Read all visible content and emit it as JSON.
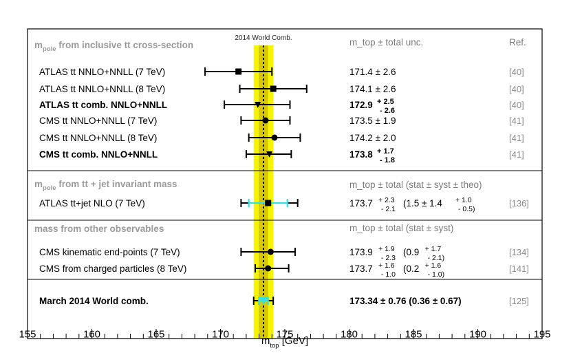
{
  "chart_data": {
    "type": "scatter",
    "xlabel": "m_top [GeV]",
    "xlabel_main": "m",
    "xlabel_sub": "top",
    "xlabel_unit": " [GeV]",
    "xlim": [
      155,
      195
    ],
    "x_ticks": [
      155,
      160,
      165,
      170,
      175,
      180,
      185,
      190,
      195
    ],
    "band": {
      "label": "2014 World Comb.",
      "center": 173.34,
      "total_unc": 0.76,
      "stat_unc": 0.36,
      "outer_color": "#f5f500",
      "inner_color": "#d8c800"
    },
    "headers": {
      "value": "m_top ± total unc.",
      "ref": "Ref."
    },
    "sections": [
      {
        "title_main": "m",
        "title_sub": "pole",
        "title_rest": " from inclusive tt cross-section",
        "value_header": "m_top ± total unc."
      },
      {
        "title_main": "m",
        "title_sub": "pole",
        "title_rest": " from tt + jet invariant mass",
        "value_header": "m_top ± total (stat ± syst ± theo)"
      },
      {
        "title_main": "",
        "title_sub": "",
        "title_rest": "mass from other observables",
        "value_header": "m_top ± total (stat ± syst)"
      }
    ],
    "measurements": [
      {
        "label": "ATLAS tt NNLO+NNLL (7 TeV)",
        "x": 171.4,
        "err_lo": 2.6,
        "err_hi": 2.6,
        "marker": "square",
        "bold": false,
        "value_text": "171.4 ± 2.6",
        "ref": "[40]"
      },
      {
        "label": "ATLAS tt NNLO+NNLL (8 TeV)",
        "x": 174.1,
        "err_lo": 2.6,
        "err_hi": 2.6,
        "marker": "square",
        "bold": false,
        "value_text": "174.1 ± 2.6",
        "ref": "[40]"
      },
      {
        "label": "ATLAS tt comb. NNLO+NNLL",
        "x": 172.9,
        "err_lo": 2.6,
        "err_hi": 2.5,
        "marker": "triangle",
        "bold": true,
        "value_text": "172.9",
        "err_up_text": "+ 2.5",
        "err_dn_text": "- 2.6",
        "ref": "[40]"
      },
      {
        "label": "CMS tt NNLO+NNLL (7 TeV)",
        "x": 173.5,
        "err_lo": 1.9,
        "err_hi": 1.9,
        "marker": "circle",
        "bold": false,
        "value_text": "173.5 ± 1.9",
        "ref": "[41]"
      },
      {
        "label": "CMS tt NNLO+NNLL (8 TeV)",
        "x": 174.2,
        "err_lo": 2.0,
        "err_hi": 2.0,
        "marker": "circle",
        "bold": false,
        "value_text": "174.2 ± 2.0",
        "ref": "[41]"
      },
      {
        "label": "CMS tt comb. NNLO+NNLL",
        "x": 173.8,
        "err_lo": 1.8,
        "err_hi": 1.7,
        "marker": "triangle",
        "bold": true,
        "value_text": "173.8",
        "err_up_text": "+ 1.7",
        "err_dn_text": "- 1.8",
        "ref": "[41]"
      },
      {
        "label": "ATLAS tt+jet NLO (7 TeV)",
        "x": 173.7,
        "err_lo": 2.1,
        "err_hi": 2.3,
        "stat": 1.5,
        "marker": "square",
        "bold": false,
        "value_text": "173.7",
        "err_up_text": "+ 2.3",
        "err_dn_text": "- 2.1",
        "detail_text": "(1.5 ± 1.4",
        "detail_up": "+ 1.0",
        "detail_dn": "- 0.5",
        "ref": "[136]"
      },
      {
        "label": "CMS kinematic end-points (7 TeV)",
        "x": 173.9,
        "err_lo": 2.3,
        "err_hi": 1.9,
        "stat": 0.9,
        "marker": "circle",
        "bold": false,
        "value_text": "173.9",
        "err_up_text": "+ 1.9",
        "err_dn_text": "- 2.3",
        "detail_text": "(0.9",
        "detail_up": "+ 1.7",
        "detail_dn": "- 2.1",
        "ref": "[134]"
      },
      {
        "label": "CMS from charged particles (8 TeV)",
        "x": 173.7,
        "err_lo": 1.0,
        "err_hi": 1.6,
        "stat": 0.2,
        "marker": "circle",
        "bold": false,
        "value_text": "173.7",
        "err_up_text": "+ 1.6",
        "err_dn_text": "- 1.0",
        "detail_text": "(0.2",
        "detail_up": "+ 1.6",
        "detail_dn": "- 1.0",
        "ref": "[141]"
      },
      {
        "label": "March 2014 World comb.",
        "x": 173.34,
        "err_lo": 0.76,
        "err_hi": 0.76,
        "stat": 0.36,
        "marker": "triangle-cyan",
        "bold": true,
        "value_text": "173.34 ± 0.76 (0.36 ± 0.67)",
        "ref": "[125]"
      }
    ],
    "colors": {
      "stat_error": "#33e0e8",
      "triangle_fill": "#33e0e8",
      "marker": "#000000"
    }
  }
}
